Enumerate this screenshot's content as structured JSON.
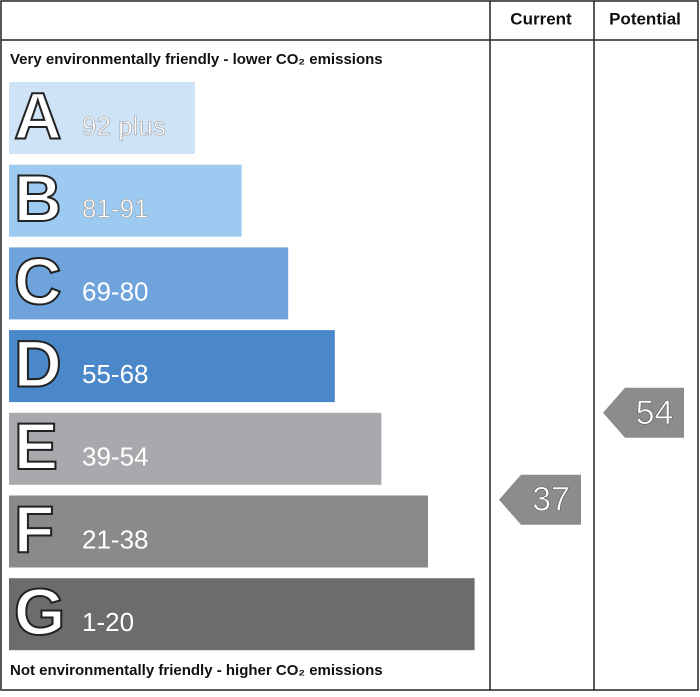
{
  "chart_data": {
    "type": "rating-bands",
    "columns": [
      "Current",
      "Potential"
    ],
    "top_label": "Very environmentally friendly - lower CO₂ emissions",
    "bottom_label": "Not environmentally friendly - higher CO₂ emissions",
    "bands": [
      {
        "letter": "A",
        "range": "92 plus",
        "color": "#cfe3f7"
      },
      {
        "letter": "B",
        "range": "81-91",
        "color": "#9ccaf0"
      },
      {
        "letter": "C",
        "range": "69-80",
        "color": "#6fa3dc"
      },
      {
        "letter": "D",
        "range": "55-68",
        "color": "#4b88ca"
      },
      {
        "letter": "E",
        "range": "39-54",
        "color": "#a9a9ad"
      },
      {
        "letter": "F",
        "range": "21-38",
        "color": "#8a8a8a"
      },
      {
        "letter": "G",
        "range": "1-20",
        "color": "#6d6b6e"
      }
    ],
    "series": [
      {
        "name": "Current",
        "values": [
          37
        ],
        "color": "#8c8c8c"
      },
      {
        "name": "Potential",
        "values": [
          54
        ],
        "color": "#8c8c8c"
      }
    ]
  }
}
